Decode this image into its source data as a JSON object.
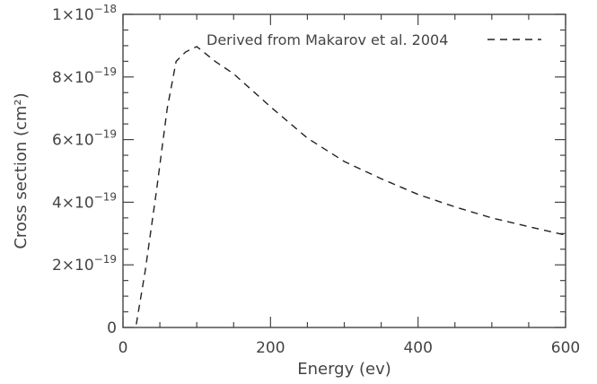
{
  "chart_data": {
    "type": "line",
    "title": "",
    "xlabel": "Energy (ev)",
    "ylabel": "Cross section (cm²)",
    "xlim": [
      0,
      600
    ],
    "ylim": [
      0,
      1e-18
    ],
    "grid": false,
    "legend_position": "top-right",
    "x_ticks": [
      {
        "value": 0,
        "label": "0"
      },
      {
        "value": 200,
        "label": "200"
      },
      {
        "value": 400,
        "label": "400"
      },
      {
        "value": 600,
        "label": "600"
      }
    ],
    "y_ticks": [
      {
        "value": 0,
        "mantissa": "0",
        "exponent": ""
      },
      {
        "value": 2e-19,
        "mantissa": "2×10",
        "exponent": "−19"
      },
      {
        "value": 4e-19,
        "mantissa": "4×10",
        "exponent": "−19"
      },
      {
        "value": 6e-19,
        "mantissa": "6×10",
        "exponent": "−19"
      },
      {
        "value": 8e-19,
        "mantissa": "8×10",
        "exponent": "−19"
      },
      {
        "value": 1e-18,
        "mantissa": "1×10",
        "exponent": "−18"
      }
    ],
    "x_minor_step": 50,
    "y_minor_step": 5e-20,
    "series": [
      {
        "name": "Derived from Makarov et al. 2004",
        "color": "#222222",
        "style": "dashed",
        "points": [
          [
            18,
            1e-20
          ],
          [
            30,
            1.8e-19
          ],
          [
            45,
            4.3e-19
          ],
          [
            60,
            7e-19
          ],
          [
            72,
            8.5e-19
          ],
          [
            85,
            8.8e-19
          ],
          [
            100,
            8.97e-19
          ],
          [
            125,
            8.5e-19
          ],
          [
            150,
            8.1e-19
          ],
          [
            200,
            7.05e-19
          ],
          [
            250,
            6.05e-19
          ],
          [
            300,
            5.3e-19
          ],
          [
            350,
            4.75e-19
          ],
          [
            400,
            4.25e-19
          ],
          [
            450,
            3.85e-19
          ],
          [
            500,
            3.5e-19
          ],
          [
            550,
            3.22e-19
          ],
          [
            600,
            2.95e-19
          ]
        ]
      }
    ]
  }
}
